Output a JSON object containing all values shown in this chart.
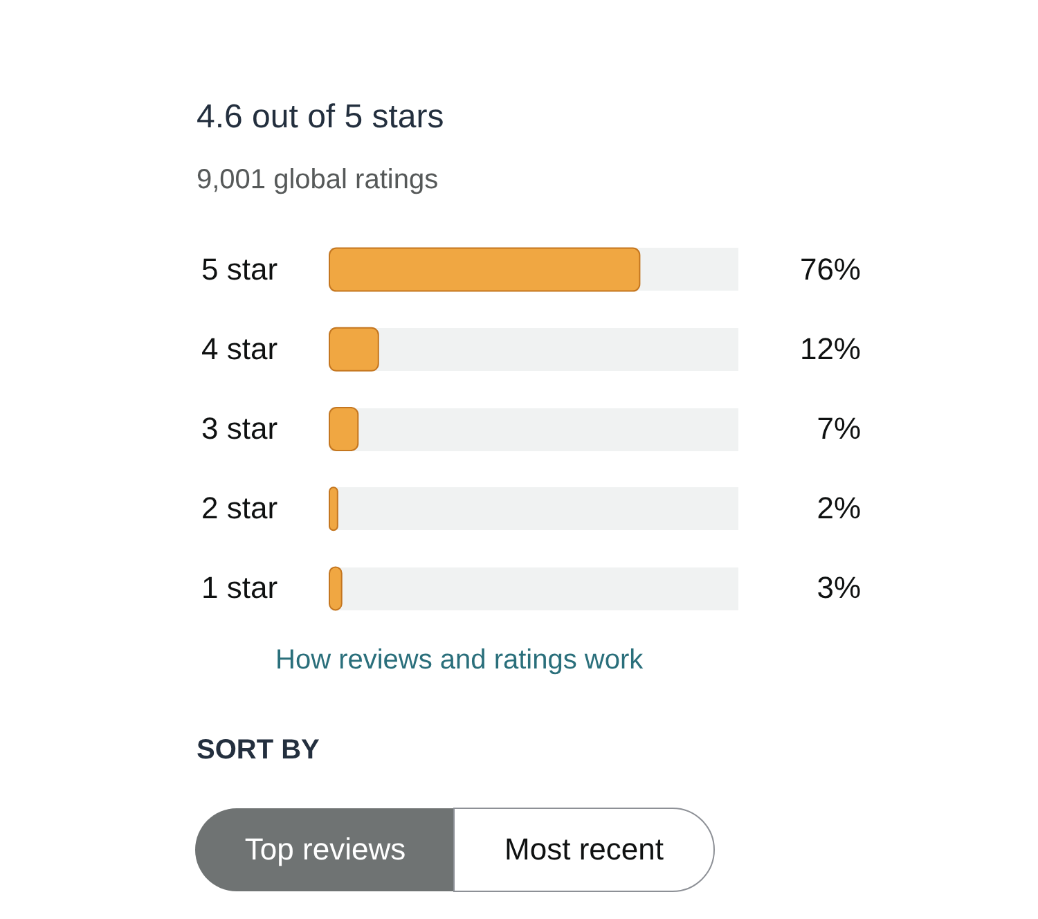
{
  "chart_data": {
    "type": "bar",
    "orientation": "horizontal",
    "title": "4.6 out of 5 stars",
    "subtitle": "9,001 global ratings",
    "categories": [
      "5 star",
      "4 star",
      "3 star",
      "2 star",
      "1 star"
    ],
    "values": [
      76,
      12,
      7,
      2,
      3
    ],
    "value_labels": [
      "76%",
      "12%",
      "7%",
      "2%",
      "3%"
    ],
    "color": "#f0a742",
    "xlim": [
      0,
      100
    ],
    "tick_labels": "y",
    "grid": "y",
    "annotations": [
      "How reviews and ratings work",
      "SORT BY",
      "Top reviews",
      "Most recent"
    ]
  }
}
